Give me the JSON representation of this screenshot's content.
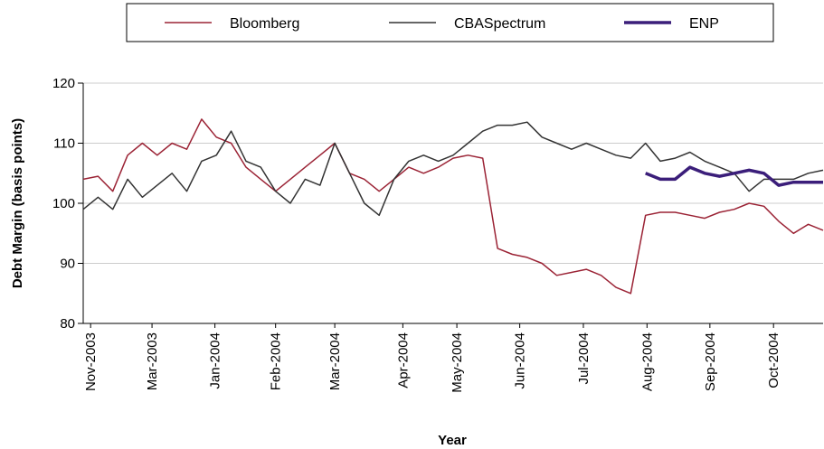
{
  "chart_data": {
    "type": "line",
    "xlabel": "Year",
    "ylabel": "Debt Margin (basis points)",
    "x": [
      0,
      2,
      4,
      6,
      8,
      10,
      12,
      14,
      16,
      18,
      20,
      22,
      24,
      26,
      28,
      30,
      32,
      34,
      36,
      38,
      40,
      42,
      44,
      46,
      48,
      50,
      52,
      54,
      56,
      58,
      60,
      62,
      64,
      66,
      68,
      70,
      72,
      74,
      76,
      78,
      80,
      82,
      84,
      86,
      88,
      90,
      92,
      94,
      96,
      98,
      100
    ],
    "xlim": [
      0,
      100
    ],
    "xticks": [
      {
        "value": 1,
        "label": "Nov-2003"
      },
      {
        "value": 9.3,
        "label": "Mar-2003"
      },
      {
        "value": 17.8,
        "label": "Jan-2004"
      },
      {
        "value": 26,
        "label": "Feb-2004"
      },
      {
        "value": 34,
        "label": "Mar-2004"
      },
      {
        "value": 43.2,
        "label": "Apr-2004"
      },
      {
        "value": 50.5,
        "label": "May-2004"
      },
      {
        "value": 59,
        "label": "Jun-2004"
      },
      {
        "value": 67.6,
        "label": "Jul-2004"
      },
      {
        "value": 76.2,
        "label": "Aug-2004"
      },
      {
        "value": 84.7,
        "label": "Sep-2004"
      },
      {
        "value": 93.3,
        "label": "Oct-2004"
      }
    ],
    "ylim": [
      80,
      120
    ],
    "yticks": [
      80,
      90,
      100,
      110,
      120
    ],
    "grid": true,
    "series": [
      {
        "name": "Bloomberg",
        "color": "#9b2335",
        "width": 1.5,
        "values": [
          104,
          104.5,
          102,
          108,
          110,
          108,
          110,
          109,
          114,
          111,
          110,
          106,
          104,
          102,
          104,
          106,
          108,
          110,
          105,
          104,
          102,
          104,
          106,
          105,
          106,
          107.5,
          108,
          107.5,
          92.5,
          91.5,
          91,
          90,
          88,
          88.5,
          89,
          88,
          86,
          85,
          98,
          98.5,
          98.5,
          98,
          97.5,
          98.5,
          99,
          100,
          99.5,
          97,
          95,
          96.5,
          95.5
        ]
      },
      {
        "name": "CBASpectrum",
        "color": "#333333",
        "width": 1.5,
        "values": [
          99,
          101,
          99,
          104,
          101,
          103,
          105,
          102,
          107,
          108,
          112,
          107,
          106,
          102,
          100,
          104,
          103,
          110,
          105,
          100,
          98,
          104,
          107,
          108,
          107,
          108,
          110,
          112,
          113,
          113,
          113.5,
          111,
          110,
          109,
          110,
          109,
          108,
          107.5,
          110,
          107,
          107.5,
          108.5,
          107,
          106,
          105,
          102,
          104,
          104,
          104,
          105,
          105.5
        ]
      },
      {
        "name": "ENP",
        "color": "#3b1e7a",
        "width": 3.5,
        "values": [
          null,
          null,
          null,
          null,
          null,
          null,
          null,
          null,
          null,
          null,
          null,
          null,
          null,
          null,
          null,
          null,
          null,
          null,
          null,
          null,
          null,
          null,
          null,
          null,
          null,
          null,
          null,
          null,
          null,
          null,
          null,
          null,
          null,
          null,
          null,
          null,
          null,
          null,
          105,
          104,
          104,
          106,
          105,
          104.5,
          105,
          105.5,
          105,
          103,
          103.5,
          103.5,
          103.5
        ]
      }
    ]
  }
}
